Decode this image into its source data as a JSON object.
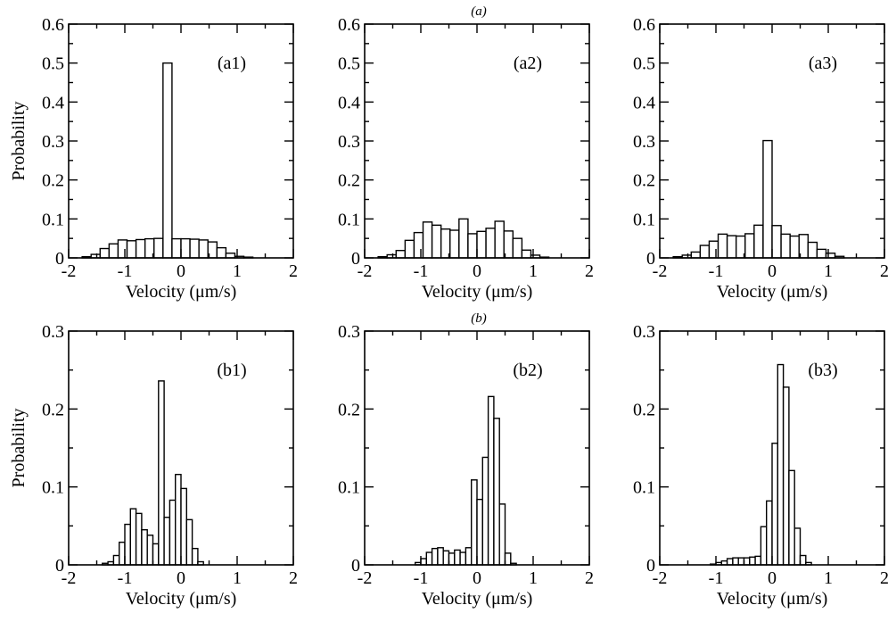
{
  "figure": {
    "row_labels": [
      "(a)",
      "(b)"
    ]
  },
  "chart_data": [
    {
      "type": "bar",
      "row": 0,
      "col": 0,
      "annotation": "(a1)",
      "xlabel": "Velocity (μm/s)",
      "ylabel": "Probability",
      "xlim": [
        -2,
        2
      ],
      "ylim": [
        0,
        0.6
      ],
      "xticks": [
        -2,
        -1,
        0,
        1,
        2
      ],
      "xticklabels": [
        "-2",
        "-1",
        "0",
        "1",
        "2"
      ],
      "yticks": [
        0,
        0.1,
        0.2,
        0.3,
        0.4,
        0.5,
        0.6
      ],
      "yticklabels": [
        "0",
        "0.1",
        "0.2",
        "0.3",
        "0.4",
        "0.5",
        "0.6"
      ],
      "bin_width": 0.16,
      "bin_left": -1.76,
      "values": [
        0.003,
        0.009,
        0.024,
        0.036,
        0.046,
        0.044,
        0.047,
        0.049,
        0.05,
        0.5,
        0.049,
        0.049,
        0.048,
        0.046,
        0.041,
        0.026,
        0.012,
        0.004,
        0.002
      ],
      "grid": false
    },
    {
      "type": "bar",
      "row": 0,
      "col": 1,
      "annotation": "(a2)",
      "xlabel": "Velocity (μm/s)",
      "ylabel": "",
      "xlim": [
        -2,
        2
      ],
      "ylim": [
        0,
        0.6
      ],
      "xticks": [
        -2,
        -1,
        0,
        1,
        2
      ],
      "xticklabels": [
        "-2",
        "-1",
        "0",
        "1",
        "2"
      ],
      "yticks": [
        0,
        0.1,
        0.2,
        0.3,
        0.4,
        0.5,
        0.6
      ],
      "yticklabels": [
        "0",
        "0.1",
        "0.2",
        "0.3",
        "0.4",
        "0.5",
        "0.6"
      ],
      "bin_width": 0.16,
      "bin_left": -1.76,
      "values": [
        0.003,
        0.008,
        0.019,
        0.045,
        0.065,
        0.092,
        0.084,
        0.074,
        0.071,
        0.1,
        0.062,
        0.068,
        0.076,
        0.094,
        0.069,
        0.05,
        0.02,
        0.007,
        0.002
      ],
      "grid": false
    },
    {
      "type": "bar",
      "row": 0,
      "col": 2,
      "annotation": "(a3)",
      "xlabel": "Velocity (μm/s)",
      "ylabel": "",
      "xlim": [
        -2,
        2
      ],
      "ylim": [
        0,
        0.6
      ],
      "xticks": [
        -2,
        -1,
        0,
        1,
        2
      ],
      "xticklabels": [
        "-2",
        "-1",
        "0",
        "1",
        "2"
      ],
      "yticks": [
        0,
        0.1,
        0.2,
        0.3,
        0.4,
        0.5,
        0.6
      ],
      "yticklabels": [
        "0",
        "0.1",
        "0.2",
        "0.3",
        "0.4",
        "0.5",
        "0.6"
      ],
      "bin_width": 0.16,
      "bin_left": -1.76,
      "values": [
        0.003,
        0.007,
        0.015,
        0.032,
        0.043,
        0.061,
        0.057,
        0.056,
        0.062,
        0.084,
        0.301,
        0.083,
        0.061,
        0.056,
        0.06,
        0.04,
        0.022,
        0.012,
        0.004
      ],
      "grid": false
    },
    {
      "type": "bar",
      "row": 1,
      "col": 0,
      "annotation": "(b1)",
      "xlabel": "Velocity (μm/s)",
      "ylabel": "Probability",
      "xlim": [
        -2,
        2
      ],
      "ylim": [
        0,
        0.3
      ],
      "xticks": [
        -2,
        -1,
        0,
        1,
        2
      ],
      "xticklabels": [
        "-2",
        "-1",
        "0",
        "1",
        "2"
      ],
      "yticks": [
        0,
        0.1,
        0.2,
        0.3
      ],
      "yticklabels": [
        "0",
        "0.1",
        "0.2",
        "0.3"
      ],
      "bin_width": 0.1,
      "bin_left": -1.4,
      "values": [
        0.002,
        0.004,
        0.012,
        0.029,
        0.052,
        0.072,
        0.066,
        0.045,
        0.038,
        0.027,
        0.236,
        0.061,
        0.083,
        0.116,
        0.098,
        0.058,
        0.021,
        0.004
      ],
      "grid": false
    },
    {
      "type": "bar",
      "row": 1,
      "col": 1,
      "annotation": "(b2)",
      "xlabel": "Velocity (μm/s)",
      "ylabel": "",
      "xlim": [
        -2,
        2
      ],
      "ylim": [
        0,
        0.3
      ],
      "xticks": [
        -2,
        -1,
        0,
        1,
        2
      ],
      "xticklabels": [
        "-2",
        "-1",
        "0",
        "1",
        "2"
      ],
      "yticks": [
        0,
        0.1,
        0.2,
        0.3
      ],
      "yticklabels": [
        "0",
        "0.1",
        "0.2",
        "0.3"
      ],
      "bin_width": 0.1,
      "bin_left": -1.1,
      "values": [
        0.003,
        0.008,
        0.016,
        0.021,
        0.022,
        0.018,
        0.015,
        0.019,
        0.016,
        0.022,
        0.109,
        0.084,
        0.138,
        0.216,
        0.188,
        0.078,
        0.015,
        0.002
      ],
      "grid": false
    },
    {
      "type": "bar",
      "row": 1,
      "col": 2,
      "annotation": "(b3)",
      "xlabel": "Velocity (μm/s)",
      "ylabel": "",
      "xlim": [
        -2,
        2
      ],
      "ylim": [
        0,
        0.3
      ],
      "xticks": [
        -2,
        -1,
        0,
        1,
        2
      ],
      "xticklabels": [
        "-2",
        "-1",
        "0",
        "1",
        "2"
      ],
      "yticks": [
        0,
        0.1,
        0.2,
        0.3
      ],
      "yticklabels": [
        "0",
        "0.1",
        "0.2",
        "0.3"
      ],
      "bin_width": 0.1,
      "bin_left": -1.1,
      "values": [
        0.001,
        0.003,
        0.005,
        0.008,
        0.009,
        0.009,
        0.009,
        0.01,
        0.011,
        0.049,
        0.082,
        0.156,
        0.257,
        0.228,
        0.121,
        0.047,
        0.012,
        0.003
      ],
      "grid": false
    }
  ]
}
